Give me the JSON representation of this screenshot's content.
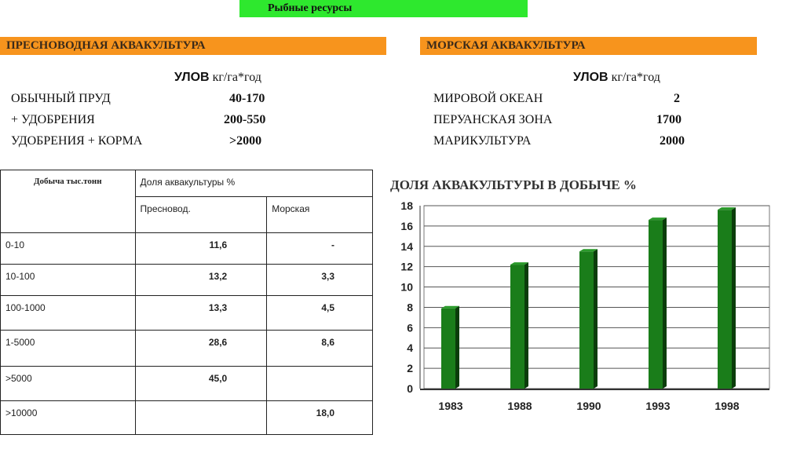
{
  "header": {
    "title": "Рыбные ресурсы"
  },
  "freshwater": {
    "heading": "ПРЕСНОВОДНАЯ АКВАКУЛЬТУРА",
    "catch_label": "УЛОВ",
    "catch_unit": "кг/га*год",
    "rows": [
      {
        "label": "ОБЫЧНЫЙ ПРУД",
        "value": "40-170"
      },
      {
        "label": "+ УДОБРЕНИЯ",
        "value": "200-550"
      },
      {
        "label": "УДОБРЕНИЯ + КОРМА",
        "value": ">2000"
      }
    ]
  },
  "marine": {
    "heading": "МОРСКАЯ АКВАКУЛЬТУРА",
    "catch_label": "УЛОВ",
    "catch_unit": "кг/га*год",
    "rows": [
      {
        "label": "МИРОВОЙ ОКЕАН",
        "value": "2"
      },
      {
        "label": "ПЕРУАНСКАЯ ЗОНА",
        "value": "1700"
      },
      {
        "label": "МАРИКУЛЬТУРА",
        "value": "2000"
      }
    ]
  },
  "table": {
    "col1_header": "Добыча тыс.тонн",
    "group_header": "Доля аквакультуры %",
    "sub_headers": [
      "Пресновод.",
      "Морская"
    ],
    "rows": [
      [
        "0-10",
        "11,6",
        "-"
      ],
      [
        "10-100",
        "13,2",
        "3,3"
      ],
      [
        "100-1000",
        "13,3",
        "4,5"
      ],
      [
        "1-5000",
        "28,6",
        "8,6"
      ],
      [
        ">5000",
        "45,0",
        ""
      ],
      [
        ">10000",
        "",
        "18,0"
      ]
    ]
  },
  "chart_data": {
    "type": "bar",
    "title": "ДОЛЯ АКВАКУЛЬТУРЫ В ДОБЫЧЕ %",
    "categories": [
      "1983",
      "1988",
      "1990",
      "1993",
      "1998"
    ],
    "values": [
      7.9,
      12.2,
      13.5,
      16.6,
      17.6
    ],
    "ylim": [
      0,
      18
    ],
    "yticks": [
      "0",
      "2",
      "4",
      "6",
      "8",
      "10",
      "12",
      "14",
      "16",
      "18"
    ],
    "grid": true,
    "bar_color": "#1a7d1a"
  }
}
